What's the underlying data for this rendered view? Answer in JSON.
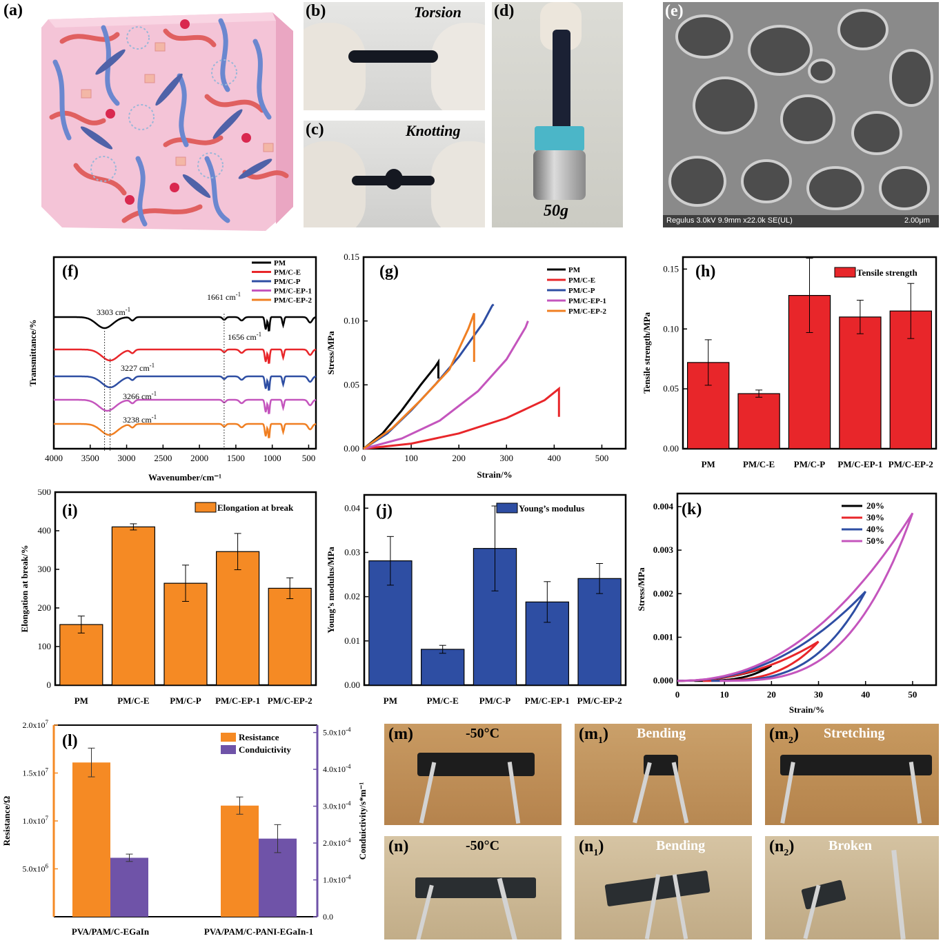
{
  "labels": {
    "a": "(a)",
    "b": "(b)",
    "c": "(c)",
    "d": "(d)",
    "e": "(e)",
    "f": "(f)",
    "g": "(g)",
    "h": "(h)",
    "i": "(i)",
    "j": "(j)",
    "k": "(k)",
    "l": "(l)",
    "m": "(m)",
    "m1": "(m",
    "m1_sub": "1",
    "m2": "(m",
    "m2_sub": "2",
    "n": "(n)",
    "n1": "(n",
    "n1_sub": "1",
    "n2": "(n",
    "n2_sub": "2",
    "close": ")"
  },
  "photos": {
    "b_caption": "Torsion",
    "c_caption": "Knotting",
    "d_caption": "50g",
    "e_info": "Regulus 3.0kV 9.9mm x22.0k SE(UL)",
    "e_scale": "2.00μm",
    "m_caption": "-50°C",
    "m1_caption": "Bending",
    "m2_caption": "Stretching",
    "n_caption": "-50°C",
    "n1_caption": "Bending",
    "n2_caption": "Broken"
  },
  "colors": {
    "black": "#000000",
    "red": "#e8262a",
    "blue": "#2e4ea3",
    "magenta": "#c455bd",
    "orange": "#f07f22",
    "bar_red": "#e8262a",
    "bar_orange": "#f58a24",
    "bar_blue": "#2e4ea3",
    "bar_purple": "#6f53a8",
    "cube_pink": "#f2b8cf"
  },
  "chart_data": [
    {
      "id": "f",
      "type": "line",
      "xlabel": "Wavenumber/cm⁻¹",
      "ylabel": "Transmittance/%",
      "xlim": [
        4000,
        400
      ],
      "xticks": [
        "4000",
        "3500",
        "3000",
        "2500",
        "2000",
        "1500",
        "1000",
        "500"
      ],
      "legend": [
        "PM",
        "PM/C-E",
        "PM/C-P",
        "PM/C-EP-1",
        "PM/C-EP-2"
      ],
      "annotations": [
        {
          "text": "3303 cm",
          "sup": "-1"
        },
        {
          "text": "1661 cm",
          "sup": "-1"
        },
        {
          "text": "1656 cm",
          "sup": "-1"
        },
        {
          "text": "3227 cm",
          "sup": "-1"
        },
        {
          "text": "3266 cm",
          "sup": "-1"
        },
        {
          "text": "3238 cm",
          "sup": "-1"
        }
      ],
      "series": [
        {
          "name": "PM",
          "peak": 3303,
          "offset": 0
        },
        {
          "name": "PM/C-E",
          "peak": 3227,
          "offset": 1
        },
        {
          "name": "PM/C-P",
          "peak": 3227,
          "offset": 2
        },
        {
          "name": "PM/C-EP-1",
          "peak": 3266,
          "offset": 3
        },
        {
          "name": "PM/C-EP-2",
          "peak": 3238,
          "offset": 4
        }
      ]
    },
    {
      "id": "g",
      "type": "line",
      "xlabel": "Strain/%",
      "ylabel": "Stress/MPa",
      "xlim": [
        0,
        550
      ],
      "ylim": [
        0,
        0.15
      ],
      "xticks": [
        "0",
        "100",
        "200",
        "300",
        "400",
        "500"
      ],
      "yticks": [
        "0.00",
        "0.05",
        "0.10",
        "0.15"
      ],
      "series": [
        {
          "name": "PM",
          "x": [
            0,
            40,
            80,
            120,
            150,
            157,
            157
          ],
          "y": [
            0,
            0.012,
            0.03,
            0.05,
            0.064,
            0.068,
            0.055
          ]
        },
        {
          "name": "PM/C-E",
          "x": [
            0,
            100,
            200,
            300,
            380,
            410,
            410
          ],
          "y": [
            0,
            0.004,
            0.012,
            0.024,
            0.038,
            0.047,
            0.025
          ]
        },
        {
          "name": "PM/C-P",
          "x": [
            0,
            50,
            100,
            150,
            200,
            250,
            270,
            273
          ],
          "y": [
            0,
            0.012,
            0.03,
            0.05,
            0.072,
            0.098,
            0.112,
            0.113
          ]
        },
        {
          "name": "PM/C-EP-1",
          "x": [
            0,
            80,
            160,
            240,
            300,
            340,
            345
          ],
          "y": [
            0,
            0.008,
            0.022,
            0.045,
            0.07,
            0.095,
            0.1
          ]
        },
        {
          "name": "PM/C-EP-2",
          "x": [
            0,
            60,
            120,
            180,
            220,
            232,
            232
          ],
          "y": [
            0,
            0.016,
            0.038,
            0.062,
            0.094,
            0.106,
            0.068
          ]
        }
      ]
    },
    {
      "id": "h",
      "type": "bar",
      "legend": "Tensile strength",
      "ylabel": "Tensile strength/MPa",
      "ylim": [
        0,
        0.16
      ],
      "yticks": [
        "0.00",
        "0.05",
        "0.10",
        "0.15"
      ],
      "categories": [
        "PM",
        "PM/C-E",
        "PM/C-P",
        "PM/C-EP-1",
        "PM/C-EP-2"
      ],
      "values": [
        0.072,
        0.046,
        0.128,
        0.11,
        0.115
      ],
      "errors": [
        0.019,
        0.003,
        0.031,
        0.014,
        0.023
      ]
    },
    {
      "id": "i",
      "type": "bar",
      "legend": "Elongation at break",
      "ylabel": "Elongation at break/%",
      "ylim": [
        0,
        500
      ],
      "yticks": [
        "0",
        "100",
        "200",
        "300",
        "400",
        "500"
      ],
      "categories": [
        "PM",
        "PM/C-E",
        "PM/C-P",
        "PM/C-EP-1",
        "PM/C-EP-2"
      ],
      "values": [
        157,
        410,
        264,
        346,
        251
      ],
      "errors": [
        22,
        8,
        47,
        47,
        27
      ]
    },
    {
      "id": "j",
      "type": "bar",
      "legend": "Young’s modulus",
      "ylabel": "Young’s modulus/MPa",
      "ylim": [
        0,
        0.043
      ],
      "yticks": [
        "0.00",
        "0.01",
        "0.02",
        "0.03",
        "0.04"
      ],
      "categories": [
        "PM",
        "PM/C-E",
        "PM/C-P",
        "PM/C-EP-1",
        "PM/C-EP-2"
      ],
      "values": [
        0.0281,
        0.0081,
        0.0309,
        0.0188,
        0.0241
      ],
      "errors": [
        0.0055,
        0.0009,
        0.0096,
        0.0046,
        0.0034
      ]
    },
    {
      "id": "k",
      "type": "line",
      "xlabel": "Strain/%",
      "ylabel": "Stress/MPa",
      "xlim": [
        0,
        55
      ],
      "ylim": [
        -0.0001,
        0.0043
      ],
      "xticks": [
        "0",
        "10",
        "20",
        "30",
        "40",
        "50"
      ],
      "yticks": [
        "0.000",
        "0.001",
        "0.002",
        "0.003",
        "0.004"
      ],
      "series": [
        {
          "name": "20%",
          "max_strain": 20,
          "max_stress": 0.00035
        },
        {
          "name": "30%",
          "max_strain": 30,
          "max_stress": 0.0009
        },
        {
          "name": "40%",
          "max_strain": 40,
          "max_stress": 0.00205
        },
        {
          "name": "50%",
          "max_strain": 50,
          "max_stress": 0.00385
        }
      ]
    },
    {
      "id": "l",
      "type": "bar",
      "ylabel_left": "Resistance/Ω",
      "ylabel_right": "Conduictivity/s*m⁻¹",
      "ylim_left": [
        0,
        20000000.0
      ],
      "ylim_right": [
        0,
        0.00052
      ],
      "yticks_left": [
        "2.0x10",
        "1.5x10",
        "1.0x10",
        "5.0x10"
      ],
      "yticks_left_exp": [
        "7",
        "7",
        "7",
        "6"
      ],
      "yticks_right": [
        "5.0x10",
        "4.0x10",
        "3.0x10",
        "2.0x10",
        "1.0x10",
        "0.0"
      ],
      "yticks_right_exp": [
        "-4",
        "-4",
        "-4",
        "-4",
        "-4",
        ""
      ],
      "categories": [
        "PVA/PAM/C-EGaIn",
        "PVA/PAM/C-PANI-EGaIn-1"
      ],
      "series": [
        {
          "name": "Resistance",
          "axis": "left",
          "values": [
            16100000.0,
            11600000.0
          ],
          "errors": [
            1500000.0,
            900000.0
          ]
        },
        {
          "name": "Conduictivity",
          "axis": "right",
          "values": [
            0.00016,
            0.000212
          ],
          "errors": [
            1e-05,
            3.8e-05
          ]
        }
      ]
    }
  ]
}
